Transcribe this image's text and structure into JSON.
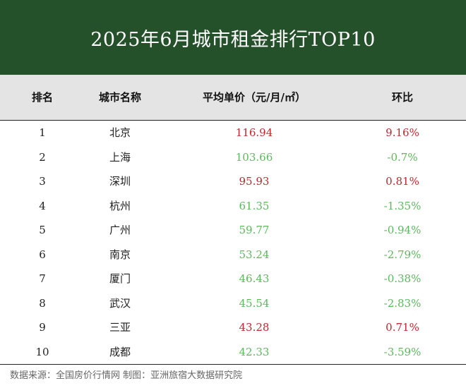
{
  "title": "2025年6月城市租金排行TOP10",
  "colors": {
    "header_bg": "#24502a",
    "up": "#c0282d",
    "down": "#5cb85c"
  },
  "table": {
    "headers": [
      "排名",
      "城市名称",
      "平均单价（元/月/㎡）",
      "环比"
    ],
    "rows": [
      {
        "rank": "1",
        "city": "北京",
        "price": "116.94",
        "change": "9.16%",
        "trend": "up"
      },
      {
        "rank": "2",
        "city": "上海",
        "price": "103.66",
        "change": "-0.7%",
        "trend": "down"
      },
      {
        "rank": "3",
        "city": "深圳",
        "price": "95.93",
        "change": "0.81%",
        "trend": "up"
      },
      {
        "rank": "4",
        "city": "杭州",
        "price": "61.35",
        "change": "-1.35%",
        "trend": "down"
      },
      {
        "rank": "5",
        "city": "广州",
        "price": "59.77",
        "change": "-0.94%",
        "trend": "down"
      },
      {
        "rank": "6",
        "city": "南京",
        "price": "53.24",
        "change": "-2.79%",
        "trend": "down"
      },
      {
        "rank": "7",
        "city": "厦门",
        "price": "46.43",
        "change": "-0.38%",
        "trend": "down"
      },
      {
        "rank": "8",
        "city": "武汉",
        "price": "45.54",
        "change": "-2.83%",
        "trend": "down"
      },
      {
        "rank": "9",
        "city": "三亚",
        "price": "43.28",
        "change": "0.71%",
        "trend": "up"
      },
      {
        "rank": "10",
        "city": "成都",
        "price": "42.33",
        "change": "-3.59%",
        "trend": "down"
      }
    ]
  },
  "footer": "数据来源：全国房价行情网   制图：亚洲旅宿大数据研究院"
}
